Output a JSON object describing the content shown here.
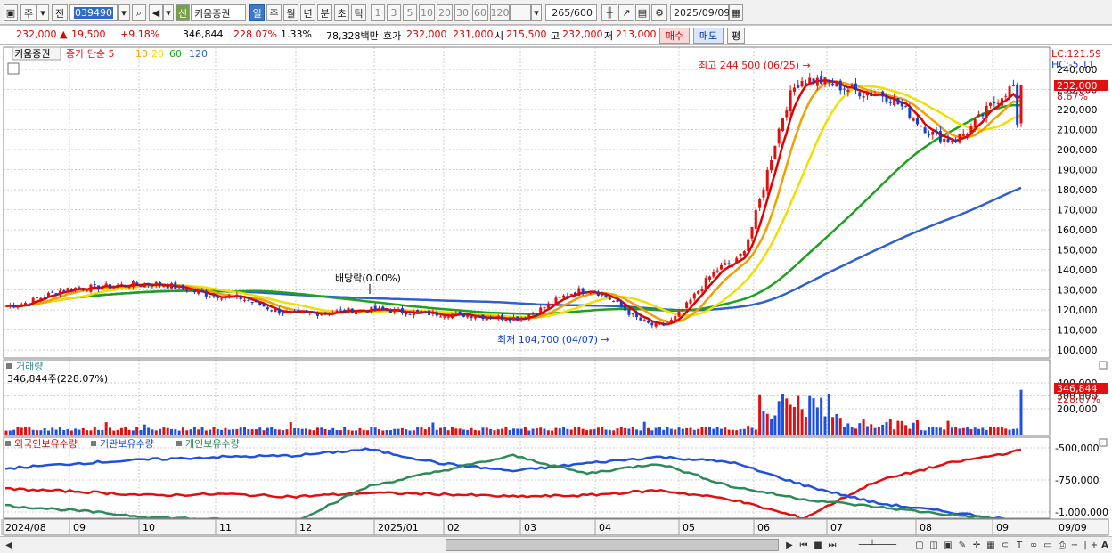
{
  "toolbar": {
    "type_select": "주",
    "prev_label": "전",
    "stock_code": "039490",
    "signal_label": "신",
    "stock_name": "키움증권",
    "period_tabs": [
      {
        "label": "일",
        "active": true
      },
      {
        "label": "주",
        "active": false
      },
      {
        "label": "월",
        "active": false
      },
      {
        "label": "년",
        "active": false
      },
      {
        "label": "분",
        "active": false
      },
      {
        "label": "초",
        "active": false
      },
      {
        "label": "틱",
        "active": false
      }
    ],
    "interval_buttons": [
      "1",
      "3",
      "5",
      "10",
      "20",
      "30",
      "60",
      "120"
    ],
    "count_value": "265",
    "count_total": "/600",
    "date_value": "2025/09/09"
  },
  "quote": {
    "price": "232,000",
    "change": "19,500",
    "change_pct": "+9.18%",
    "volume": "346,844",
    "volume_ratio": "228.07%",
    "turnover": "1.33%",
    "amount": "78,328백만",
    "hoga_label": "호가",
    "bid": "232,000",
    "ask": "231,000",
    "open_label": "시",
    "open": "215,500",
    "high_label": "고",
    "high": "232,000",
    "low_label": "저",
    "low": "213,000",
    "buy_label": "매수",
    "sell_label": "매도",
    "avg_label": "평"
  },
  "chart_data": {
    "type": "candlestick",
    "stock": "키움증권",
    "legend": {
      "price_label": "종가 단순",
      "ma_periods": [
        "5",
        "10",
        "20",
        "60",
        "120"
      ],
      "ma_colors": [
        "#e00000",
        "#f0a000",
        "#f0e000",
        "#20a020",
        "#3060d0"
      ]
    },
    "y_ticks": [
      "240,000",
      "230,000",
      "220,000",
      "210,000",
      "200,000",
      "190,000",
      "180,000",
      "170,000",
      "160,000",
      "150,000",
      "140,000",
      "130,000",
      "120,000",
      "110,000",
      "100,000"
    ],
    "ylim": [
      96000,
      244500
    ],
    "price_tag": "232,000",
    "price_tag_pct": "8.67%",
    "lc_label": "LC:121.59",
    "hc_label": "HC:-5.11",
    "annotations": {
      "high": "최고 244,500 (06/25)",
      "low": "최저 104,700 (04/07)",
      "dividend": "배당락(0.00%)"
    },
    "x_labels": [
      "2024/08",
      "09",
      "10",
      "11",
      "12",
      "2025/01",
      "02",
      "03",
      "04",
      "05",
      "06",
      "07",
      "08",
      "09"
    ],
    "x_end_label": "09/09",
    "monthly_close": [
      122000,
      131000,
      133000,
      127000,
      118000,
      120000,
      118000,
      116000,
      130000,
      112000,
      143000,
      235000,
      228000,
      205000,
      232000
    ],
    "volume_title": "거래량",
    "volume_value": "346,844주(228.07%)",
    "volume_ticks": [
      "400,000",
      "300,000",
      "200,000"
    ],
    "volume_tag": "346,844",
    "volume_tag_pct": "228.07%",
    "holders_series": [
      {
        "name": "외국인보유수량",
        "color": "#e01010"
      },
      {
        "name": "기관보유수량",
        "color": "#2050e0"
      },
      {
        "name": "개인보유수량",
        "color": "#2e8b57"
      }
    ],
    "holder_ticks": [
      "-500,000",
      "-750,000",
      "-1,000,000"
    ]
  }
}
